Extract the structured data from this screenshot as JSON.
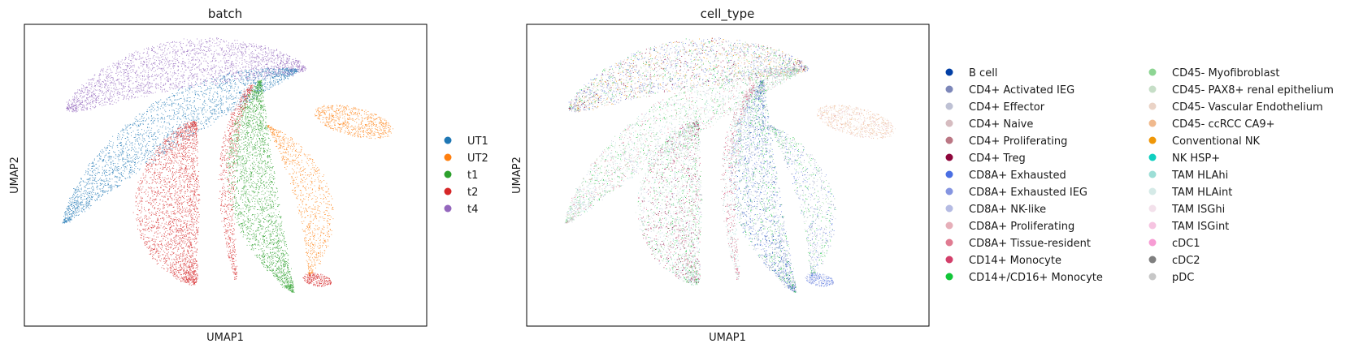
{
  "chart_data": [
    {
      "type": "scatter",
      "title": "batch",
      "xlabel": "UMAP1",
      "ylabel": "UMAP2",
      "grid": false,
      "legend_position": "right",
      "legend": [
        {
          "label": "UT1",
          "color": "#1f77b4"
        },
        {
          "label": "UT2",
          "color": "#ff7f0e"
        },
        {
          "label": "t1",
          "color": "#2ca02c"
        },
        {
          "label": "t2",
          "color": "#d62728"
        },
        {
          "label": "t4",
          "color": "#9467bd"
        }
      ]
    },
    {
      "type": "scatter",
      "title": "cell_type",
      "xlabel": "UMAP1",
      "ylabel": "UMAP2",
      "grid": false,
      "legend_position": "right",
      "legend": [
        {
          "label": "B cell",
          "color": "#023fa5"
        },
        {
          "label": "CD4+ Activated IEG",
          "color": "#7d87b9"
        },
        {
          "label": "CD4+ Effector",
          "color": "#bec1d4"
        },
        {
          "label": "CD4+ Naive",
          "color": "#d6bcc0"
        },
        {
          "label": "CD4+ Proliferating",
          "color": "#bb7784"
        },
        {
          "label": "CD4+ Treg",
          "color": "#8e063b"
        },
        {
          "label": "CD8A+ Exhausted",
          "color": "#4a6fe3"
        },
        {
          "label": "CD8A+ Exhausted IEG",
          "color": "#8595e1"
        },
        {
          "label": "CD8A+ NK-like",
          "color": "#b5bbe3"
        },
        {
          "label": "CD8A+ Proliferating",
          "color": "#e6afb9"
        },
        {
          "label": "CD8A+ Tissue-resident",
          "color": "#e07b91"
        },
        {
          "label": "CD14+ Monocyte",
          "color": "#d33f6a"
        },
        {
          "label": "CD14+/CD16+ Monocyte",
          "color": "#11c638"
        },
        {
          "label": "CD45- Myofibroblast",
          "color": "#8dd593"
        },
        {
          "label": "CD45- PAX8+ renal epithelium",
          "color": "#c6dec7"
        },
        {
          "label": "CD45- Vascular Endothelium",
          "color": "#ead3c6"
        },
        {
          "label": "CD45- ccRCC CA9+",
          "color": "#f0b98d"
        },
        {
          "label": "Conventional NK",
          "color": "#ef9708"
        },
        {
          "label": "NK HSP+",
          "color": "#0fcfc0"
        },
        {
          "label": "TAM HLAhi",
          "color": "#9cded6"
        },
        {
          "label": "TAM HLAint",
          "color": "#d5eae7"
        },
        {
          "label": "TAM ISGhi",
          "color": "#f3e1eb"
        },
        {
          "label": "TAM ISGint",
          "color": "#f6c4e1"
        },
        {
          "label": "cDC1",
          "color": "#f79cd4"
        },
        {
          "label": "cDC2",
          "color": "#7f7f7f"
        },
        {
          "label": "pDC",
          "color": "#c7c7c7"
        }
      ]
    }
  ]
}
